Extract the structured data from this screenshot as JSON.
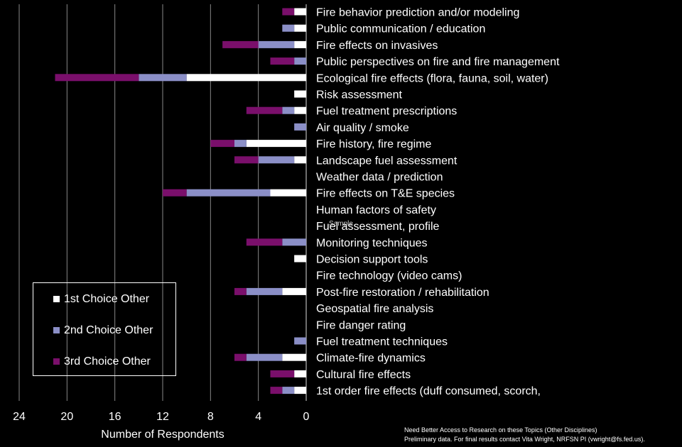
{
  "chart_data": {
    "type": "bar",
    "orientation": "horizontal-stacked",
    "x_direction": "reversed",
    "xlim": [
      0,
      24
    ],
    "xticks": [
      24,
      20,
      16,
      12,
      8,
      4,
      0
    ],
    "xlabel": "Number of Respondents",
    "grid": "vertical",
    "watermark": "Sample",
    "categories": [
      "Fire behavior prediction and/or modeling",
      "Public communication / education",
      "Fire effects on invasives",
      "Public perspectives on fire and fire management",
      "Ecological fire effects (flora, fauna, soil, water)",
      "Risk assessment",
      "Fuel treatment prescriptions",
      "Air quality / smoke",
      "Fire history, fire regime",
      "Landscape fuel assessment",
      "Weather data / prediction",
      "Fire effects on T&E species",
      "Human factors of safety",
      "Fuel assessment, profile",
      "Monitoring techniques",
      "Decision support tools",
      "Fire technology (video cams)",
      "Post-fire restoration / rehabilitation",
      "Geospatial fire analysis",
      "Fire danger rating",
      "Fuel treatment techniques",
      "Climate-fire dynamics",
      "Cultural fire effects",
      "1st order fire effects (duff consumed, scorch,"
    ],
    "series": [
      {
        "name": "1st Choice Other",
        "color": "#ffffff",
        "values": [
          1,
          1,
          1,
          0,
          10,
          1,
          1,
          0,
          5,
          1,
          0,
          3,
          0,
          0,
          0,
          1,
          0,
          2,
          0,
          0,
          0,
          2,
          1,
          1
        ]
      },
      {
        "name": "2nd Choice Other",
        "color": "#8b8fc7",
        "values": [
          0,
          1,
          3,
          1,
          4,
          0,
          1,
          1,
          1,
          3,
          0,
          7,
          0,
          0,
          2,
          0,
          0,
          3,
          0,
          0,
          1,
          3,
          0,
          1
        ]
      },
      {
        "name": "3rd Choice Other",
        "color": "#7a0f6b",
        "values": [
          1,
          0,
          3,
          2,
          7,
          0,
          3,
          0,
          2,
          2,
          0,
          2,
          0,
          0,
          3,
          0,
          0,
          1,
          0,
          0,
          0,
          1,
          2,
          1
        ]
      }
    ]
  },
  "footnote": {
    "line1": "Need Better Access to Research on these Topics (Other Disciplines)",
    "line2": "Preliminary data. For final results contact Vita Wright, NRFSN PI (vwright@fs.fed.us)."
  }
}
